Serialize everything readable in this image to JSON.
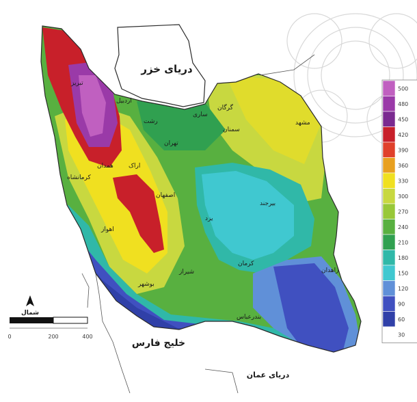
{
  "labels": {
    "caspian": "دریای خزر",
    "persian_gulf": "خلیج فارس",
    "oman_sea": "دریای عمان"
  },
  "north_symbol": "شمال",
  "legend": {
    "ticks": [
      "500",
      "480",
      "450",
      "420",
      "390",
      "360",
      "330",
      "300",
      "270",
      "240",
      "210",
      "180",
      "150",
      "120",
      "90",
      "60",
      "30"
    ],
    "colors": [
      "#c060c0",
      "#9a3aa8",
      "#7a2a90",
      "#c8202a",
      "#e0402a",
      "#e8a020",
      "#f0e020",
      "#c8d840",
      "#98c838",
      "#58b040",
      "#30a050",
      "#30b8a8",
      "#40c8d0",
      "#6090d8",
      "#4050c0",
      "#3040a8",
      "#ffffff"
    ]
  },
  "scale_bar": {
    "labels": [
      "0",
      "200",
      "400"
    ]
  },
  "city_labels": [
    "تبریز",
    "اردبیل",
    "رشت",
    "تهران",
    "ساری",
    "گرگان",
    "مشهد",
    "همدان",
    "اراک",
    "اصفهان",
    "یزد",
    "شیراز",
    "کرمان",
    "اهواز",
    "بوشهر",
    "زاهدان",
    "بندرعباس",
    "سمنان",
    "بیرجند",
    "کرمانشاه"
  ]
}
